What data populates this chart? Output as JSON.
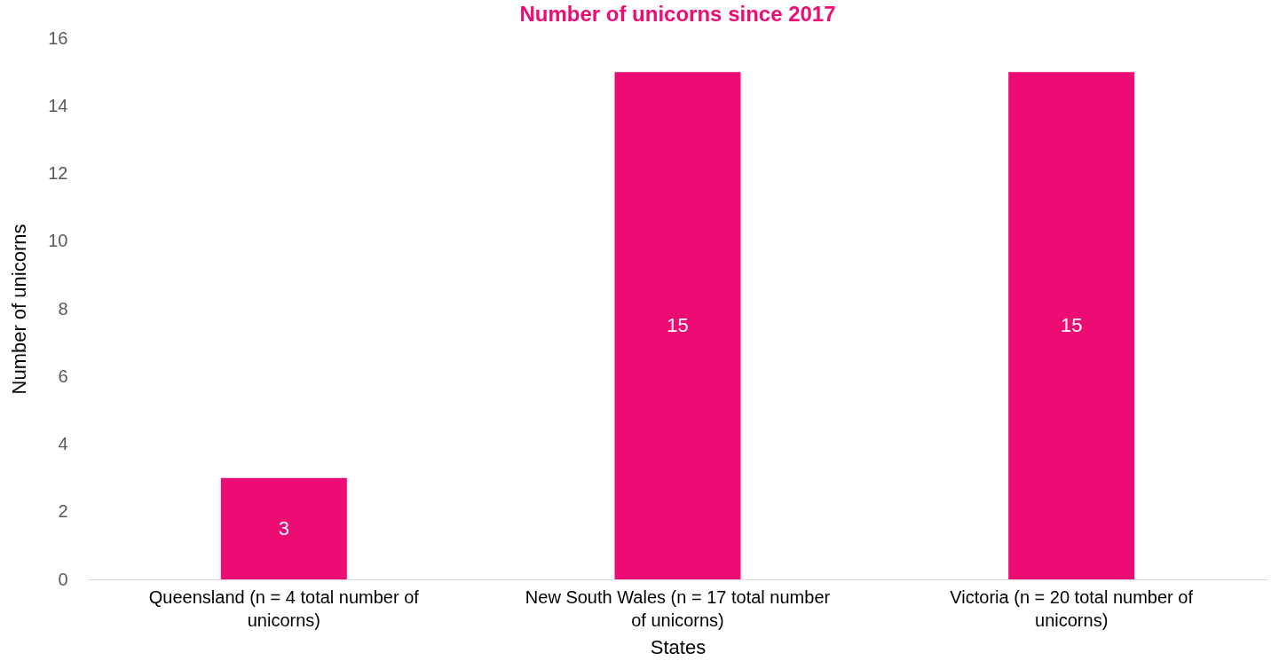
{
  "chart_data": {
    "type": "bar",
    "title": "Number of unicorns since 2017",
    "xlabel": "States",
    "ylabel": "Number of unicorns",
    "categories": [
      "Queensland (n = 4 total number of unicorns)",
      "New South Wales (n = 17 total number of unicorns)",
      "Victoria (n = 20 total number of unicorns)"
    ],
    "values": [
      3,
      15,
      15
    ],
    "color": "#ec0c74",
    "ylim": [
      0,
      16
    ],
    "yticks": [
      0,
      2,
      4,
      6,
      8,
      10,
      12,
      14,
      16
    ],
    "grid": false,
    "data_labels": true
  }
}
